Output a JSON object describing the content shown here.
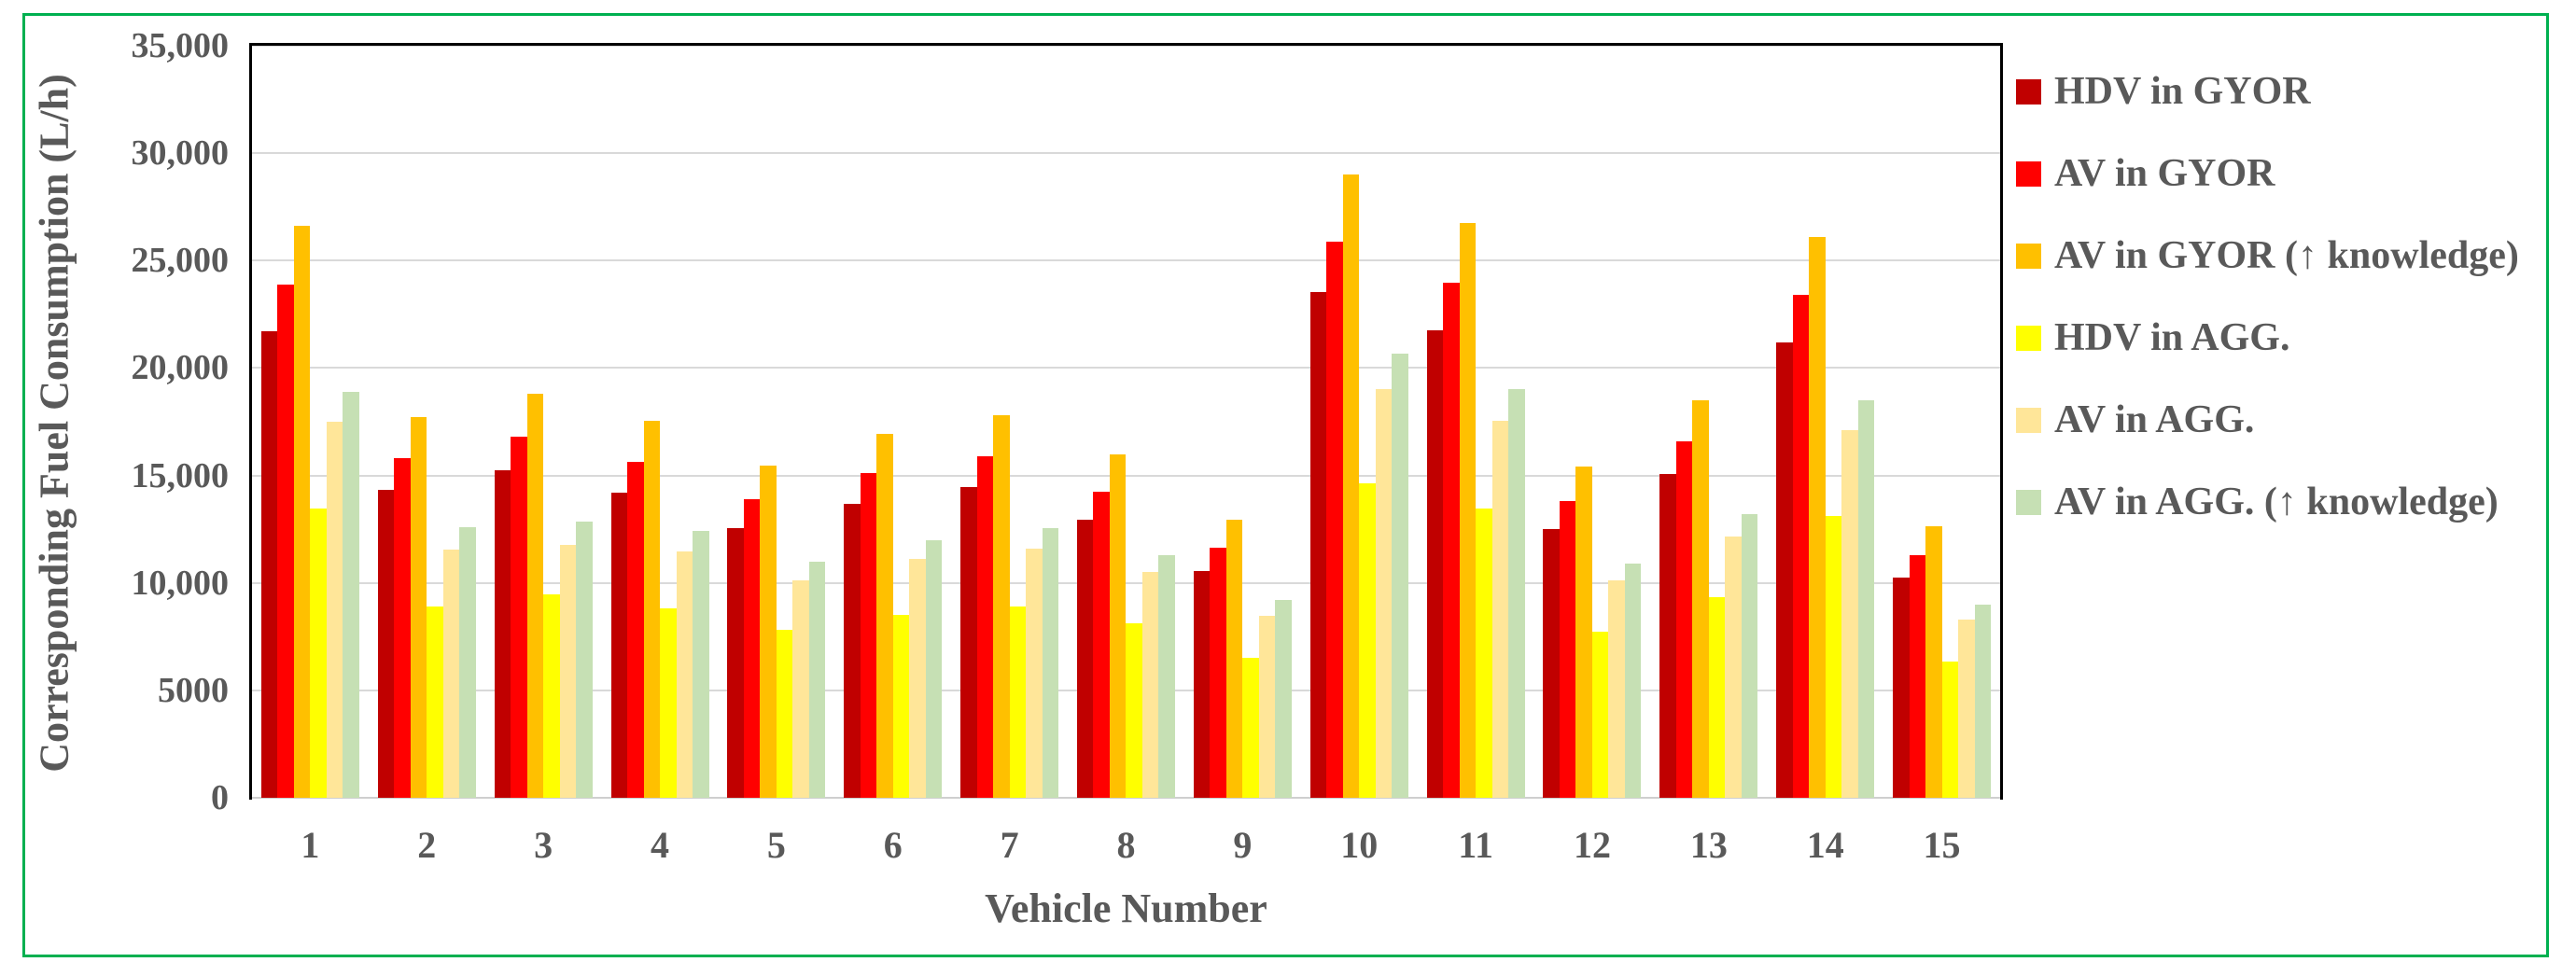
{
  "figure": {
    "border_color": "#00B050",
    "background_color": "#FFFFFF",
    "text_color": "#595959",
    "gridline_color": "#D9D9D9",
    "axis_color": "#000000"
  },
  "chart_data": {
    "type": "bar",
    "title": "",
    "xlabel": "Vehicle Number",
    "ylabel": "Corresponding Fuel Consumption (L/h)",
    "ylim": [
      0,
      35000
    ],
    "grid": true,
    "legend_position": "right",
    "yticks": [
      {
        "value": 0,
        "label": "0"
      },
      {
        "value": 5000,
        "label": "5000"
      },
      {
        "value": 10000,
        "label": "10,000"
      },
      {
        "value": 15000,
        "label": "15,000"
      },
      {
        "value": 20000,
        "label": "20,000"
      },
      {
        "value": 25000,
        "label": "25,000"
      },
      {
        "value": 30000,
        "label": "30,000"
      },
      {
        "value": 35000,
        "label": "35,000"
      }
    ],
    "categories": [
      "1",
      "2",
      "3",
      "4",
      "5",
      "6",
      "7",
      "8",
      "9",
      "10",
      "11",
      "12",
      "13",
      "14",
      "15"
    ],
    "series": [
      {
        "name": "HDV in GYOR",
        "color": "#C00000",
        "values": [
          21700,
          14350,
          15250,
          14200,
          12550,
          13700,
          14450,
          12950,
          10550,
          23550,
          21750,
          12500,
          15050,
          21200,
          10250
        ]
      },
      {
        "name": "AV in GYOR",
        "color": "#FF0000",
        "values": [
          23900,
          15800,
          16800,
          15650,
          13900,
          15100,
          15900,
          14250,
          11650,
          25900,
          23950,
          13800,
          16600,
          23400,
          11300
        ]
      },
      {
        "name": "AV in GYOR (↑ knowledge)",
        "color": "#FFC000",
        "values": [
          26600,
          17700,
          18800,
          17550,
          15450,
          16950,
          17800,
          16000,
          12950,
          29000,
          26750,
          15400,
          18500,
          26100,
          12650
        ]
      },
      {
        "name": "HDV in AGG.",
        "color": "#FFFF00",
        "values": [
          13450,
          8900,
          9450,
          8800,
          7800,
          8500,
          8900,
          8100,
          6500,
          14650,
          13450,
          7750,
          9350,
          13100,
          6350
        ]
      },
      {
        "name": "AV in AGG.",
        "color": "#FFE699",
        "values": [
          17500,
          11550,
          11750,
          11450,
          10100,
          11100,
          11600,
          10500,
          8450,
          19000,
          17550,
          10100,
          12150,
          17100,
          8300
        ]
      },
      {
        "name": "AV in AGG. (↑ knowledge)",
        "color": "#C6E0B4",
        "values": [
          18900,
          12600,
          12850,
          12400,
          11000,
          12000,
          12550,
          11300,
          9200,
          20650,
          19000,
          10900,
          13200,
          18500,
          9000
        ]
      }
    ]
  }
}
